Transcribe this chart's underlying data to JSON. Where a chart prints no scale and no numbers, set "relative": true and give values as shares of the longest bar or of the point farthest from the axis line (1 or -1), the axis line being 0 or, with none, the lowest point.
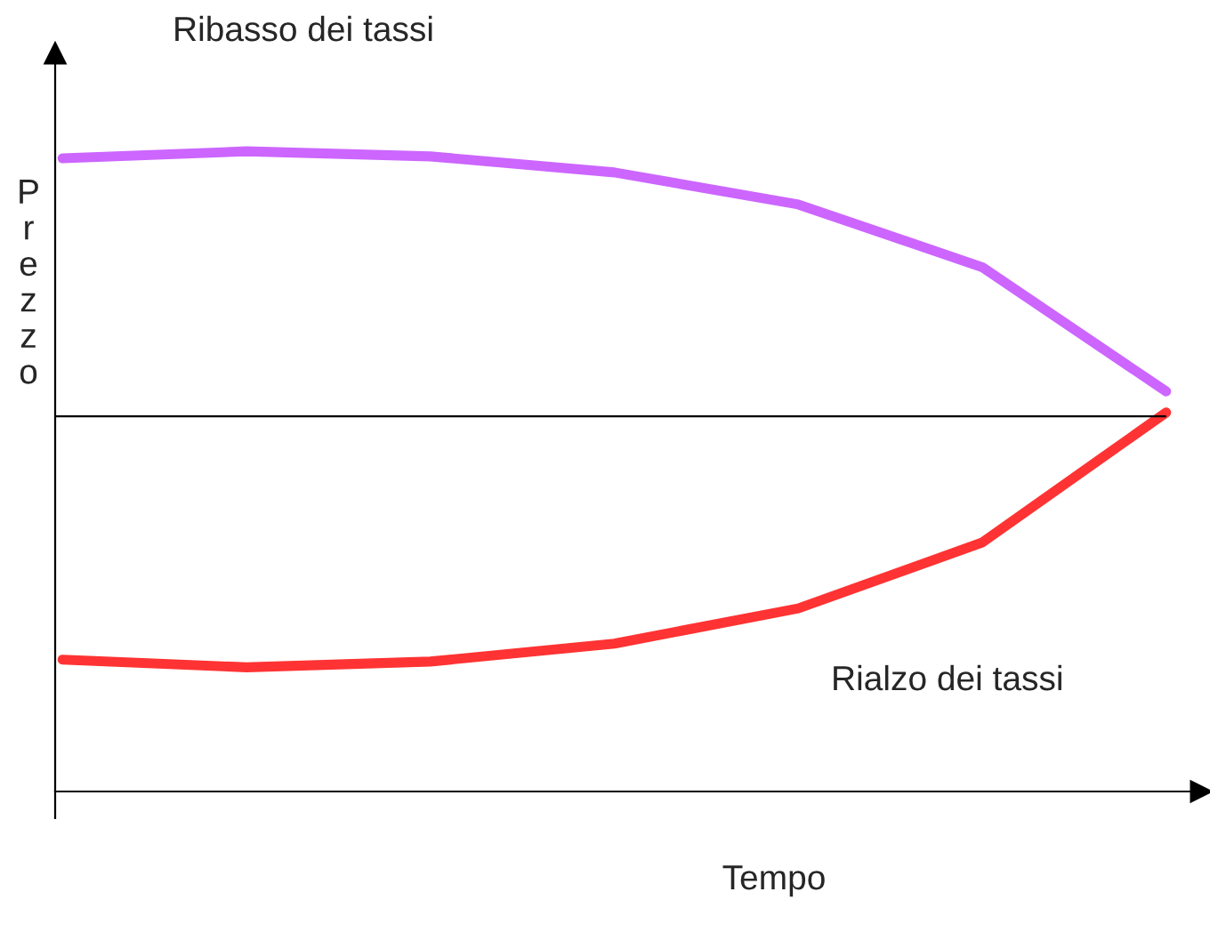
{
  "chart_data": {
    "type": "line",
    "relative": true,
    "xlabel": "Tempo",
    "ylabel": "Prezzo",
    "categories": [
      null,
      null,
      null,
      null,
      null,
      null,
      null
    ],
    "series": [
      {
        "color": "#cc66ff",
        "values": [
          0.989,
          1,
          0.992,
          0.967,
          0.917,
          0.819,
          0.625
        ]
      },
      {
        "color": "#ff3333",
        "values": [
          0.206,
          0.194,
          0.203,
          0.231,
          0.286,
          0.389,
          0.592
        ]
      }
    ],
    "ref_lines": [
      {
        "axis": "y",
        "value": 0.586,
        "color": "#000000"
      }
    ],
    "annotations": [
      "Ribasso dei tassi",
      "Rialzo dei tassi"
    ],
    "marker": "none",
    "line_style": "solid",
    "legend": false
  }
}
